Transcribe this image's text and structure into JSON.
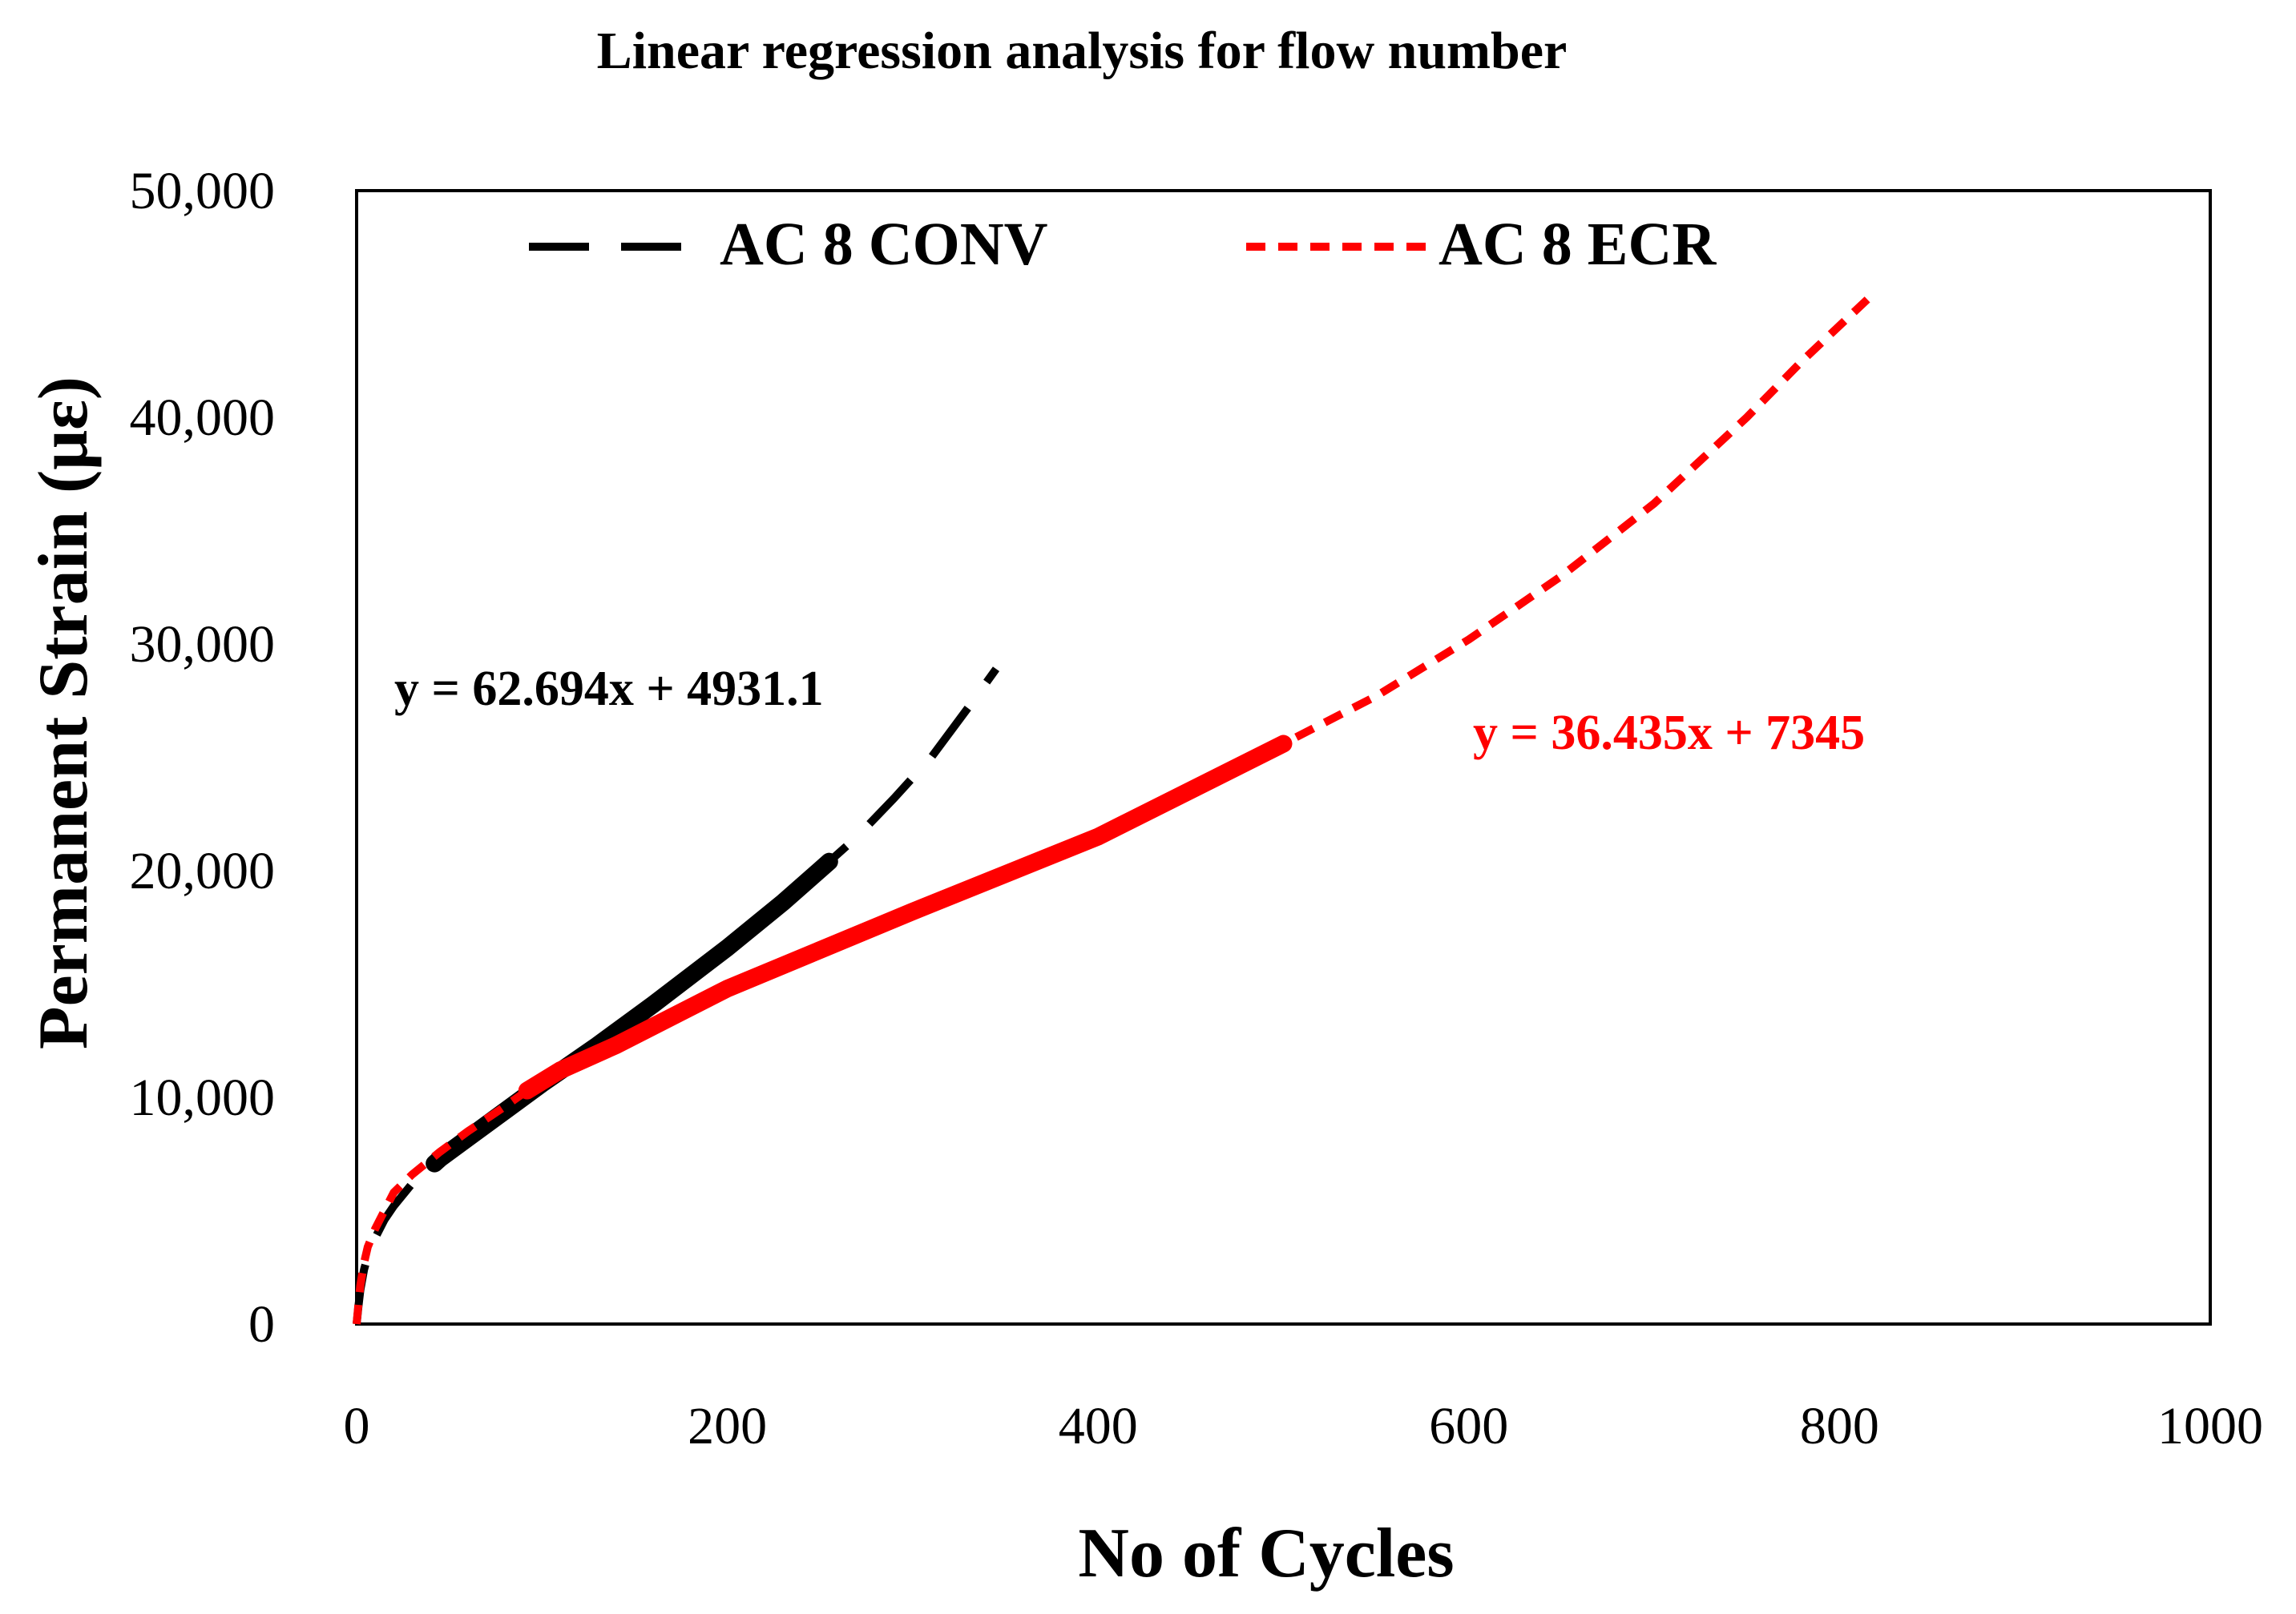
{
  "chart_data": {
    "type": "line",
    "title": "Linear regression analysis for flow number",
    "xlabel": "No of Cycles",
    "ylabel": "Permanent Strain (με)",
    "xlim": [
      0,
      1000
    ],
    "ylim": [
      0,
      50000
    ],
    "x_ticks": [
      0,
      200,
      400,
      600,
      800,
      1000
    ],
    "x_tick_labels": [
      "0",
      "200",
      "400",
      "600",
      "800",
      "1000"
    ],
    "y_ticks": [
      0,
      10000,
      20000,
      30000,
      40000,
      50000
    ],
    "y_tick_labels": [
      "0",
      "10,000",
      "20,000",
      "30,000",
      "40,000",
      "50,000"
    ],
    "grid": false,
    "legend_position": "top",
    "series": [
      {
        "name": "AC 8 CONV",
        "color": "#000000",
        "style": "long-dash",
        "x": [
          0,
          1,
          2,
          4,
          6,
          10,
          15,
          20,
          30,
          45,
          60,
          80,
          100,
          130,
          160,
          200,
          230,
          255,
          270,
          290,
          310,
          330,
          345
        ],
        "y": [
          0,
          800,
          1500,
          2400,
          3000,
          3800,
          4600,
          5200,
          6200,
          7300,
          8200,
          9400,
          10600,
          12300,
          14100,
          16600,
          18600,
          20400,
          21500,
          23200,
          25000,
          27200,
          28900
        ]
      },
      {
        "name": "AC 8 ECR",
        "color": "#ff0000",
        "style": "short-dash",
        "x": [
          0,
          1,
          2,
          4,
          6,
          10,
          15,
          20,
          30,
          45,
          60,
          80,
          92,
          110,
          140,
          200,
          300,
          400,
          500,
          550,
          600,
          650,
          700,
          750,
          780,
          815
        ],
        "y": [
          0,
          900,
          1700,
          2700,
          3400,
          4200,
          5000,
          5800,
          6600,
          7600,
          8500,
          9600,
          10300,
          11200,
          12300,
          14800,
          18200,
          21500,
          25600,
          27700,
          30200,
          33000,
          36200,
          40000,
          42500,
          45200
        ]
      }
    ],
    "annotations": [
      {
        "text": "y = 62.694x + 4931.1",
        "color": "#000000",
        "series": "AC 8 CONV"
      },
      {
        "text": "y = 36.435x + 7345",
        "color": "#ff0000",
        "series": "AC 8 ECR"
      }
    ],
    "linear_fits": [
      {
        "series": "AC 8 CONV",
        "x_start": 42,
        "x_end": 255
      },
      {
        "series": "AC 8 ECR",
        "x_start": 92,
        "x_end": 500
      }
    ]
  }
}
